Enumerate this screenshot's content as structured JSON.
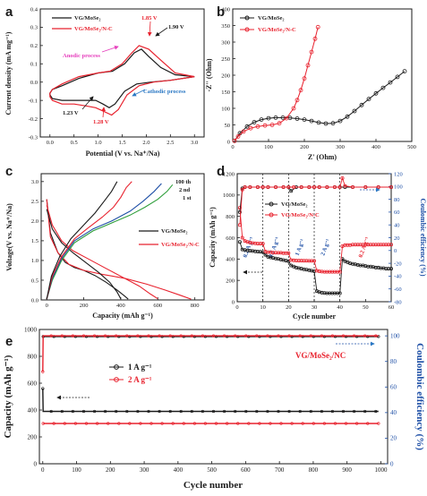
{
  "colors": {
    "black": "#1a1a1a",
    "red": "#e8222e",
    "blue": "#1e4fa6",
    "magenta": "#e63fbd",
    "cath": "#2b78c4"
  },
  "chart_data": [
    {
      "panel": "a",
      "type": "line",
      "xlabel": "Potential (V vs. Na⁺/Na)",
      "ylabel": "Current density (mA mg⁻¹)",
      "xlim": [
        -0.2,
        3.2
      ],
      "ylim": [
        -0.3,
        0.4
      ],
      "xticks": [
        "0.0",
        "0.5",
        "1.0",
        "1.5",
        "2.0",
        "2.5",
        "3.0"
      ],
      "yticks": [
        "-0.3",
        "-0.2",
        "-0.1",
        "0.0",
        "0.1",
        "0.2",
        "0.3",
        "0.4"
      ],
      "legend": [
        "VG/MoSe₂",
        "VG/MoSe₂/N-C"
      ],
      "annotations": [
        "1.85 V",
        "1.90 V",
        "Anodic process",
        "1.23 V",
        "1.28 V",
        "Cathodic process"
      ],
      "series": [
        {
          "name": "VG/MoSe₂",
          "color": "black",
          "x": [
            3.0,
            2.6,
            2.3,
            2.05,
            1.9,
            1.75,
            1.55,
            1.3,
            1.0,
            0.6,
            0.25,
            0.05,
            0.0,
            0.0,
            0.05,
            0.25,
            0.5,
            0.75,
            0.95,
            1.1,
            1.23,
            1.35,
            1.55,
            1.8,
            2.1,
            2.5,
            3.0
          ],
          "y": [
            0.03,
            0.04,
            0.08,
            0.14,
            0.18,
            0.16,
            0.1,
            0.06,
            0.05,
            0.02,
            -0.02,
            -0.04,
            -0.06,
            -0.07,
            -0.09,
            -0.1,
            -0.1,
            -0.1,
            -0.1,
            -0.12,
            -0.14,
            -0.12,
            -0.05,
            -0.01,
            0.0,
            0.01,
            0.03
          ]
        },
        {
          "name": "VG/MoSe₂/N-C",
          "color": "red",
          "x": [
            3.0,
            2.6,
            2.3,
            2.05,
            1.85,
            1.7,
            1.5,
            1.25,
            1.0,
            0.6,
            0.25,
            0.05,
            0.0,
            0.0,
            0.05,
            0.25,
            0.5,
            0.75,
            0.95,
            1.12,
            1.28,
            1.42,
            1.6,
            1.85,
            2.15,
            2.5,
            3.0
          ],
          "y": [
            0.03,
            0.05,
            0.12,
            0.18,
            0.2,
            0.16,
            0.1,
            0.06,
            0.05,
            0.03,
            -0.01,
            -0.04,
            -0.06,
            -0.08,
            -0.1,
            -0.12,
            -0.12,
            -0.13,
            -0.14,
            -0.16,
            -0.18,
            -0.15,
            -0.07,
            -0.02,
            0.0,
            0.01,
            0.03
          ]
        }
      ]
    },
    {
      "panel": "b",
      "type": "scatter",
      "xlabel": "Z' (Ohm)",
      "ylabel": "-Z'' (Ohm)",
      "xlim": [
        0,
        500
      ],
      "ylim": [
        0,
        400
      ],
      "xticks": [
        "0",
        "100",
        "200",
        "300",
        "400",
        "500"
      ],
      "yticks": [
        "0",
        "50",
        "100",
        "150",
        "200",
        "250",
        "300",
        "350",
        "400"
      ],
      "legend": [
        "VG/MoSe₂",
        "VG/MoSe₂/N-C"
      ],
      "series": [
        {
          "name": "VG/MoSe₂",
          "color": "black",
          "x": [
            5,
            20,
            40,
            60,
            80,
            100,
            120,
            140,
            160,
            180,
            200,
            220,
            240,
            260,
            280,
            300,
            320,
            340,
            360,
            380,
            400,
            420,
            440,
            460,
            480
          ],
          "y": [
            2,
            25,
            45,
            58,
            66,
            70,
            72,
            72,
            71,
            69,
            66,
            62,
            57,
            54,
            55,
            62,
            75,
            92,
            110,
            128,
            145,
            162,
            178,
            195,
            212
          ]
        },
        {
          "name": "VG/MoSe₂/N-C",
          "color": "red",
          "x": [
            5,
            15,
            30,
            50,
            70,
            90,
            110,
            130,
            150,
            170,
            180,
            190,
            200,
            210,
            220,
            230,
            238
          ],
          "y": [
            2,
            15,
            30,
            40,
            45,
            48,
            50,
            55,
            70,
            100,
            125,
            155,
            190,
            230,
            270,
            310,
            345
          ]
        }
      ]
    },
    {
      "panel": "c",
      "type": "line",
      "xlabel": "Capacity (mAh g⁻¹)",
      "ylabel": "Voltage(V vs. Na⁺/Na)",
      "xlim": [
        -30,
        850
      ],
      "ylim": [
        0,
        3.2
      ],
      "xticks": [
        "0",
        "200",
        "400",
        "600",
        "800"
      ],
      "yticks": [
        "0.0",
        "0.5",
        "1.0",
        "1.5",
        "2.0",
        "2.5",
        "3.0"
      ],
      "legend": [
        "VG/MoSe₂",
        "VG/MoSe₂/N-C"
      ],
      "annotations": [
        "100 th",
        "2 nd",
        "1 st"
      ],
      "series": [
        {
          "name": "VG/MoSe₂ 1st discharge",
          "color": "black",
          "x": [
            0,
            20,
            60,
            100,
            150,
            200,
            260,
            320,
            380,
            420,
            440
          ],
          "y": [
            2.55,
            1.7,
            1.2,
            0.95,
            0.82,
            0.75,
            0.62,
            0.45,
            0.25,
            0.1,
            0.02
          ]
        },
        {
          "name": "VG/MoSe₂/N-C 1st discharge",
          "color": "red",
          "x": [
            0,
            20,
            60,
            120,
            200,
            300,
            420,
            540,
            640,
            720,
            780
          ],
          "y": [
            2.55,
            1.6,
            1.2,
            0.9,
            0.75,
            0.65,
            0.55,
            0.4,
            0.25,
            0.12,
            0.02
          ]
        },
        {
          "name": "VG/MoSe₂/N-C 2nd discharge",
          "color": "red",
          "x": [
            0,
            30,
            80,
            140,
            220,
            320,
            420,
            500,
            560,
            600
          ],
          "y": [
            2.4,
            1.9,
            1.5,
            1.25,
            1.05,
            0.8,
            0.55,
            0.35,
            0.15,
            0.03
          ]
        },
        {
          "name": "VG/MoSe₂ 2nd discharge",
          "color": "black",
          "x": [
            0,
            30,
            80,
            140,
            210,
            280,
            340,
            380,
            400
          ],
          "y": [
            2.3,
            1.8,
            1.45,
            1.2,
            0.95,
            0.7,
            0.45,
            0.2,
            0.03
          ]
        },
        {
          "name": "VG/MoSe₂/N-C 1st charge",
          "color": "green",
          "x": [
            0,
            30,
            80,
            150,
            250,
            350,
            450,
            530,
            600,
            650,
            680
          ],
          "y": [
            0.02,
            0.5,
            1.0,
            1.45,
            1.75,
            1.95,
            2.15,
            2.35,
            2.55,
            2.75,
            2.92
          ]
        },
        {
          "name": "VG/MoSe₂/N-C 2nd charge",
          "color": "blue",
          "x": [
            0,
            30,
            80,
            150,
            250,
            350,
            450,
            520,
            580,
            620
          ],
          "y": [
            0.02,
            0.55,
            1.05,
            1.5,
            1.8,
            2.0,
            2.25,
            2.5,
            2.75,
            2.95
          ]
        },
        {
          "name": "VG/MoSe₂/N-C 100th charge",
          "color": "red",
          "x": [
            0,
            30,
            80,
            150,
            230,
            300,
            360,
            400,
            430,
            460
          ],
          "y": [
            0.02,
            0.6,
            1.1,
            1.55,
            1.85,
            2.1,
            2.35,
            2.6,
            2.85,
            3.0
          ]
        },
        {
          "name": "VG/MoSe₂ charge",
          "color": "black",
          "x": [
            0,
            25,
            70,
            130,
            200,
            260,
            310,
            350,
            380
          ],
          "y": [
            0.02,
            0.6,
            1.1,
            1.55,
            1.9,
            2.2,
            2.5,
            2.75,
            3.0
          ]
        }
      ]
    },
    {
      "panel": "d",
      "type": "scatter",
      "xlabel": "Cycle number",
      "ylabel": "Capacity (mAh g⁻¹)",
      "ylabel_right": "Coulombic efficiency (%)",
      "xlim": [
        0,
        60
      ],
      "ylim": [
        0,
        1200
      ],
      "ylim_right": [
        -80,
        120
      ],
      "xticks": [
        "0",
        "10",
        "20",
        "30",
        "40",
        "50",
        "60"
      ],
      "yticks": [
        "0",
        "200",
        "400",
        "600",
        "800",
        "1000",
        "1200"
      ],
      "yticks_right": [
        "-80",
        "-60",
        "-40",
        "-20",
        "0",
        "20",
        "40",
        "60",
        "80",
        "100",
        "120"
      ],
      "legend": [
        "VG/MoSe₂",
        "VG/MoSe₂/N-C"
      ],
      "rate_labels": [
        "0.2 A g⁻¹",
        "0.5 A g⁻¹",
        "1 A g⁻¹",
        "2 A g⁻¹",
        "0.2 A g⁻¹"
      ],
      "rate_x": [
        5,
        15,
        25,
        35,
        50
      ],
      "series": [
        {
          "name": "VG/MoSe₂",
          "color": "black",
          "x": [
            1,
            2,
            3,
            4,
            5,
            6,
            7,
            8,
            9,
            10,
            11,
            12,
            13,
            14,
            15,
            16,
            17,
            18,
            19,
            20,
            21,
            22,
            23,
            24,
            25,
            26,
            27,
            28,
            29,
            30,
            31,
            32,
            33,
            34,
            35,
            36,
            37,
            38,
            39,
            40,
            41,
            42,
            43,
            44,
            45,
            46,
            47,
            48,
            49,
            50,
            51,
            52,
            53,
            54,
            55,
            56,
            57,
            58,
            59,
            60
          ],
          "y": [
            560,
            490,
            485,
            480,
            478,
            475,
            472,
            470,
            468,
            465,
            440,
            420,
            415,
            410,
            405,
            400,
            395,
            390,
            385,
            380,
            340,
            330,
            320,
            315,
            310,
            305,
            300,
            295,
            290,
            285,
            100,
            90,
            85,
            82,
            80,
            80,
            80,
            80,
            80,
            80,
            400,
            380,
            370,
            360,
            355,
            350,
            345,
            340,
            340,
            335,
            330,
            330,
            325,
            320,
            320,
            315,
            315,
            310,
            310,
            310
          ]
        },
        {
          "name": "VG/MoSe₂/N-C",
          "color": "red",
          "x": [
            1,
            2,
            3,
            4,
            5,
            6,
            7,
            8,
            9,
            10,
            11,
            12,
            13,
            14,
            15,
            16,
            17,
            18,
            19,
            20,
            21,
            22,
            23,
            24,
            25,
            26,
            27,
            28,
            29,
            30,
            31,
            32,
            33,
            34,
            35,
            36,
            37,
            38,
            39,
            40,
            41,
            42,
            43,
            44,
            45,
            46,
            47,
            48,
            49,
            50,
            51,
            52,
            53,
            54,
            55,
            56,
            57,
            58,
            59,
            60
          ],
          "y": [
            880,
            600,
            570,
            560,
            555,
            550,
            548,
            545,
            545,
            545,
            470,
            465,
            465,
            460,
            460,
            458,
            458,
            455,
            455,
            455,
            390,
            388,
            386,
            385,
            385,
            384,
            384,
            383,
            383,
            383,
            290,
            285,
            282,
            280,
            280,
            280,
            280,
            280,
            280,
            280,
            520,
            530,
            530,
            530,
            535,
            535,
            535,
            535,
            535,
            535,
            535,
            535,
            535,
            535,
            535,
            535,
            535,
            535,
            535,
            535
          ]
        },
        {
          "name": "VG/MoSe₂ CE",
          "color": "black",
          "axis": "right",
          "x": [
            1,
            2,
            3,
            5,
            8,
            10,
            12,
            15,
            18,
            20,
            21,
            23,
            25,
            28,
            30,
            32,
            35,
            38,
            40,
            42,
            45,
            50,
            55,
            60
          ],
          "y": [
            60,
            97,
            99,
            99,
            99,
            99,
            99,
            99,
            99,
            99,
            93,
            99,
            99,
            99,
            99,
            99,
            99,
            99,
            99,
            99,
            99,
            99,
            99,
            99
          ]
        },
        {
          "name": "VG/MoSe₂/N-C CE",
          "color": "red",
          "axis": "right",
          "x": [
            1,
            2,
            3,
            5,
            8,
            10,
            12,
            15,
            18,
            20,
            22,
            25,
            28,
            30,
            32,
            35,
            38,
            40,
            41,
            42,
            45,
            50,
            55,
            60
          ],
          "y": [
            40,
            95,
            99,
            99,
            99,
            99,
            99,
            99,
            99,
            99,
            99,
            99,
            99,
            99,
            99,
            99,
            99,
            99,
            113,
            101,
            99,
            99,
            99,
            99
          ]
        }
      ]
    },
    {
      "panel": "e",
      "type": "scatter",
      "xlabel": "Cycle number",
      "ylabel": "Capacity (mAh g⁻¹)",
      "ylabel_right": "Coulombic efficiency (%)",
      "xlim": [
        -10,
        1020
      ],
      "ylim": [
        0,
        1000
      ],
      "ylim_right": [
        0,
        105
      ],
      "xticks": [
        "0",
        "100",
        "200",
        "300",
        "400",
        "500",
        "600",
        "700",
        "800",
        "900",
        "1000"
      ],
      "yticks": [
        "0",
        "200",
        "400",
        "600",
        "800",
        "1000"
      ],
      "yticks_right": [
        "0",
        "20",
        "40",
        "60",
        "80",
        "100"
      ],
      "legend": [
        "1 A g⁻¹",
        "2 A g⁻¹"
      ],
      "title_annotation": "VG/MoSe₂/NC",
      "series": [
        {
          "name": "1 A g⁻¹",
          "color": "black",
          "x_range": [
            1,
            1000
          ],
          "y": 390,
          "y_first": 560
        },
        {
          "name": "2 A g⁻¹",
          "color": "red",
          "x_range": [
            1,
            1000
          ],
          "y": 300
        },
        {
          "name": "1 A g⁻¹ CE",
          "color": "black",
          "axis": "right",
          "x_range": [
            1,
            1000
          ],
          "y": 99.5
        },
        {
          "name": "2 A g⁻¹ CE",
          "color": "red",
          "axis": "right",
          "x_range": [
            1,
            1000
          ],
          "y": 100,
          "y_first": 72
        }
      ]
    }
  ]
}
